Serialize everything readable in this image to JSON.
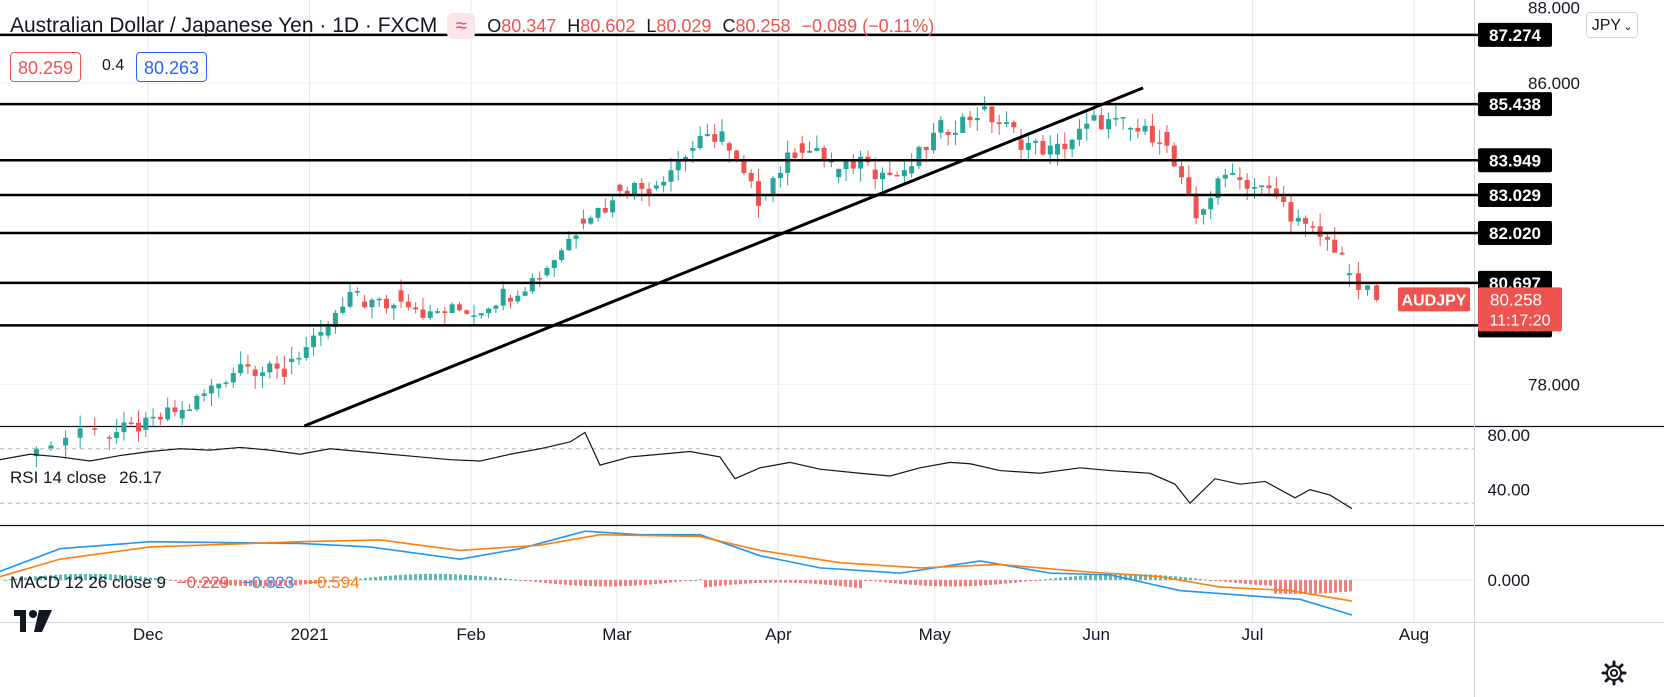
{
  "header": {
    "symbol": "Australian Dollar / Japanese Yen · 1D · FXCM",
    "badge_icon": "waves-icon",
    "o_label": "O",
    "o_value": "80.347",
    "h_label": "H",
    "h_value": "80.602",
    "l_label": "L",
    "l_value": "80.029",
    "c_label": "C",
    "c_value": "80.258",
    "change": "−0.089 (−0.11%)"
  },
  "trade": {
    "sell": "80.259",
    "spread": "0.4",
    "buy": "80.263"
  },
  "currency_button": "JPY",
  "chart_data": [
    {
      "type": "candlestick",
      "ticker": "AUDJPY",
      "last_price": "80.258",
      "countdown": "11:17:20",
      "y_ticks": [
        "88.000",
        "86.000",
        "78.000"
      ],
      "x_ticks": [
        "Dec",
        "2021",
        "Feb",
        "Mar",
        "Apr",
        "May",
        "Jun",
        "Jul",
        "Aug"
      ],
      "ylim": [
        76.9,
        88.2
      ],
      "horizontal_levels": [
        {
          "value": 87.274,
          "label": "87.274"
        },
        {
          "value": 85.438,
          "label": "85.438"
        },
        {
          "value": 83.949,
          "label": "83.949"
        },
        {
          "value": 83.029,
          "label": "83.029"
        },
        {
          "value": 82.02,
          "label": "82.020"
        },
        {
          "value": 80.697,
          "label": "80.697"
        },
        {
          "value": 79.57,
          "label": "79.570"
        }
      ],
      "trendline": {
        "from": [
          "2020-12-31",
          76.9
        ],
        "to": [
          "2021-06-10",
          85.87
        ]
      },
      "candles_weekly_approx": [
        {
          "date": "2020-11-09",
          "o": 76.1,
          "c": 76.95
        },
        {
          "date": "2020-11-23",
          "o": 76.6,
          "c": 76.9
        },
        {
          "date": "2020-11-30",
          "o": 76.8,
          "c": 77.3
        },
        {
          "date": "2020-12-07",
          "o": 77.1,
          "c": 77.9
        },
        {
          "date": "2020-12-14",
          "o": 77.9,
          "c": 78.7
        },
        {
          "date": "2020-12-21",
          "o": 78.4,
          "c": 78.3
        },
        {
          "date": "2020-12-28",
          "o": 78.6,
          "c": 79.2
        },
        {
          "date": "2021-01-04",
          "o": 79.3,
          "c": 80.5
        },
        {
          "date": "2021-01-11",
          "o": 80.2,
          "c": 80.1
        },
        {
          "date": "2021-01-18",
          "o": 80.5,
          "c": 79.8
        },
        {
          "date": "2021-01-25",
          "o": 79.9,
          "c": 80.0
        },
        {
          "date": "2021-02-01",
          "o": 79.8,
          "c": 80.4
        },
        {
          "date": "2021-02-08",
          "o": 80.3,
          "c": 80.9
        },
        {
          "date": "2021-02-15",
          "o": 80.9,
          "c": 82.1
        },
        {
          "date": "2021-02-22",
          "o": 82.4,
          "c": 82.8
        },
        {
          "date": "2021-03-01",
          "o": 83.3,
          "c": 83.2
        },
        {
          "date": "2021-03-08",
          "o": 83.2,
          "c": 84.1
        },
        {
          "date": "2021-03-15",
          "o": 84.2,
          "c": 84.7
        },
        {
          "date": "2021-03-22",
          "o": 84.4,
          "c": 82.9
        },
        {
          "date": "2021-03-29",
          "o": 83.0,
          "c": 84.2
        },
        {
          "date": "2021-04-05",
          "o": 84.4,
          "c": 83.9
        },
        {
          "date": "2021-04-12",
          "o": 83.5,
          "c": 84.1
        },
        {
          "date": "2021-04-19",
          "o": 83.7,
          "c": 83.5
        },
        {
          "date": "2021-04-26",
          "o": 83.6,
          "c": 84.8
        },
        {
          "date": "2021-05-03",
          "o": 84.7,
          "c": 85.2
        },
        {
          "date": "2021-05-10",
          "o": 85.3,
          "c": 84.7
        },
        {
          "date": "2021-05-17",
          "o": 84.5,
          "c": 84.2
        },
        {
          "date": "2021-05-24",
          "o": 84.1,
          "c": 84.8
        },
        {
          "date": "2021-05-31",
          "o": 85.0,
          "c": 84.9
        },
        {
          "date": "2021-06-07",
          "o": 84.8,
          "c": 84.6
        },
        {
          "date": "2021-06-14",
          "o": 84.7,
          "c": 82.4
        },
        {
          "date": "2021-06-21",
          "o": 82.5,
          "c": 83.8
        },
        {
          "date": "2021-06-28",
          "o": 83.5,
          "c": 83.1
        },
        {
          "date": "2021-07-05",
          "o": 83.2,
          "c": 82.1
        },
        {
          "date": "2021-07-12",
          "o": 82.2,
          "c": 81.5
        },
        {
          "date": "2021-07-19",
          "o": 80.9,
          "c": 80.26
        }
      ]
    },
    {
      "type": "line",
      "name": "RSI 14 close",
      "value": "26.17",
      "y_ticks": [
        "80.00",
        "40.00"
      ],
      "ylim": [
        14,
        86
      ],
      "levels": [
        70,
        30
      ]
    },
    {
      "type": "line",
      "name": "MACD 12 26 close 9",
      "values_text": [
        "−0.229",
        "−0.823",
        "−0.594"
      ],
      "series": [
        {
          "name": "−0.823",
          "color": "#2196f3"
        },
        {
          "name": "−0.594",
          "color": "#ff7f0e"
        }
      ],
      "y_ticks": [
        "0.000"
      ],
      "ylim": [
        -1.2,
        1.55
      ]
    }
  ],
  "icons": {
    "logo": "tradingview-logo",
    "settings": "gear-icon",
    "dropdown": "chevron-down-icon"
  },
  "colors": {
    "up": "#26a69a",
    "down": "#ef5350",
    "text": "#131722"
  }
}
